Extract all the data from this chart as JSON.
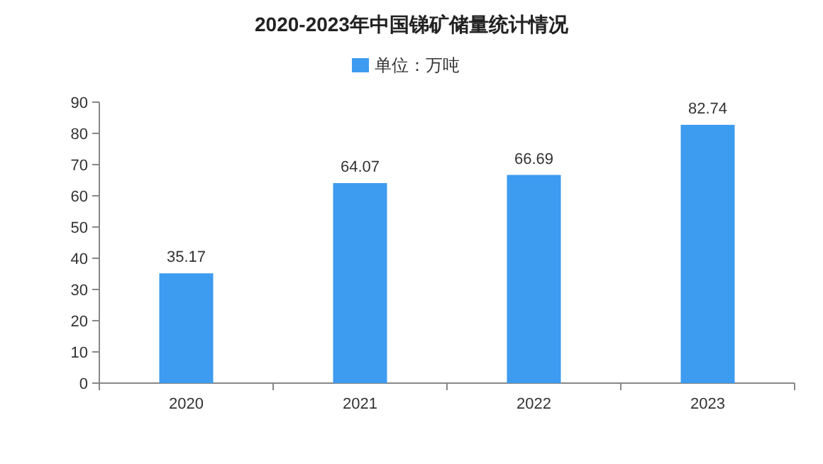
{
  "chart_data": {
    "type": "bar",
    "title": "2020-2023年中国锑矿储量统计情况",
    "categories": [
      "2020",
      "2021",
      "2022",
      "2023"
    ],
    "series": [
      {
        "name": "单位：万吨",
        "color": "#3d9bf0",
        "values": [
          35.17,
          64.07,
          66.69,
          82.74
        ]
      }
    ],
    "ylim": [
      0,
      90
    ],
    "yticks": [
      0,
      10,
      20,
      30,
      40,
      50,
      60,
      70,
      80,
      90
    ],
    "data_labels": true,
    "grid": false,
    "legend": "top"
  }
}
